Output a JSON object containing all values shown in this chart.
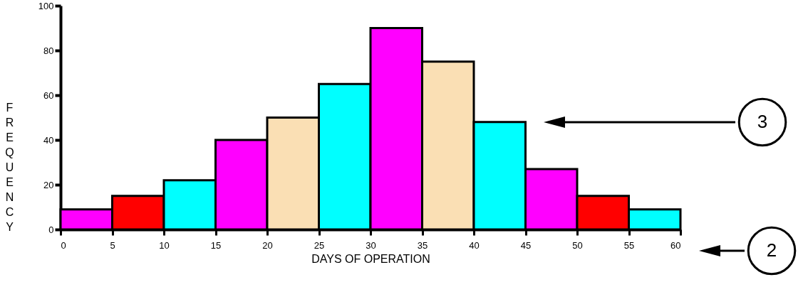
{
  "chart_data": {
    "type": "histogram",
    "xlabel": "DAYS OF OPERATION",
    "ylabel": "FREQUENCY",
    "bins": [
      0,
      5,
      10,
      15,
      20,
      25,
      30,
      35,
      40,
      45,
      50,
      55,
      60
    ],
    "values": [
      9,
      15,
      22,
      40,
      50,
      65,
      90,
      75,
      48,
      27,
      15,
      9
    ],
    "colors": [
      "#ff00ff",
      "#ff0000",
      "#00ffff",
      "#ff00ff",
      "#fadfb4",
      "#00ffff",
      "#ff00ff",
      "#fadfb4",
      "#00ffff",
      "#ff00ff",
      "#ff0000",
      "#00ffff"
    ],
    "xlim": [
      0,
      60
    ],
    "xticks": [
      0,
      5,
      10,
      15,
      20,
      25,
      30,
      35,
      40,
      45,
      50,
      55,
      60
    ],
    "ylim": [
      0,
      100
    ],
    "yticks": [
      0,
      20,
      40,
      60,
      80,
      100
    ],
    "grid": false,
    "annotations": [
      "3",
      "2"
    ]
  }
}
